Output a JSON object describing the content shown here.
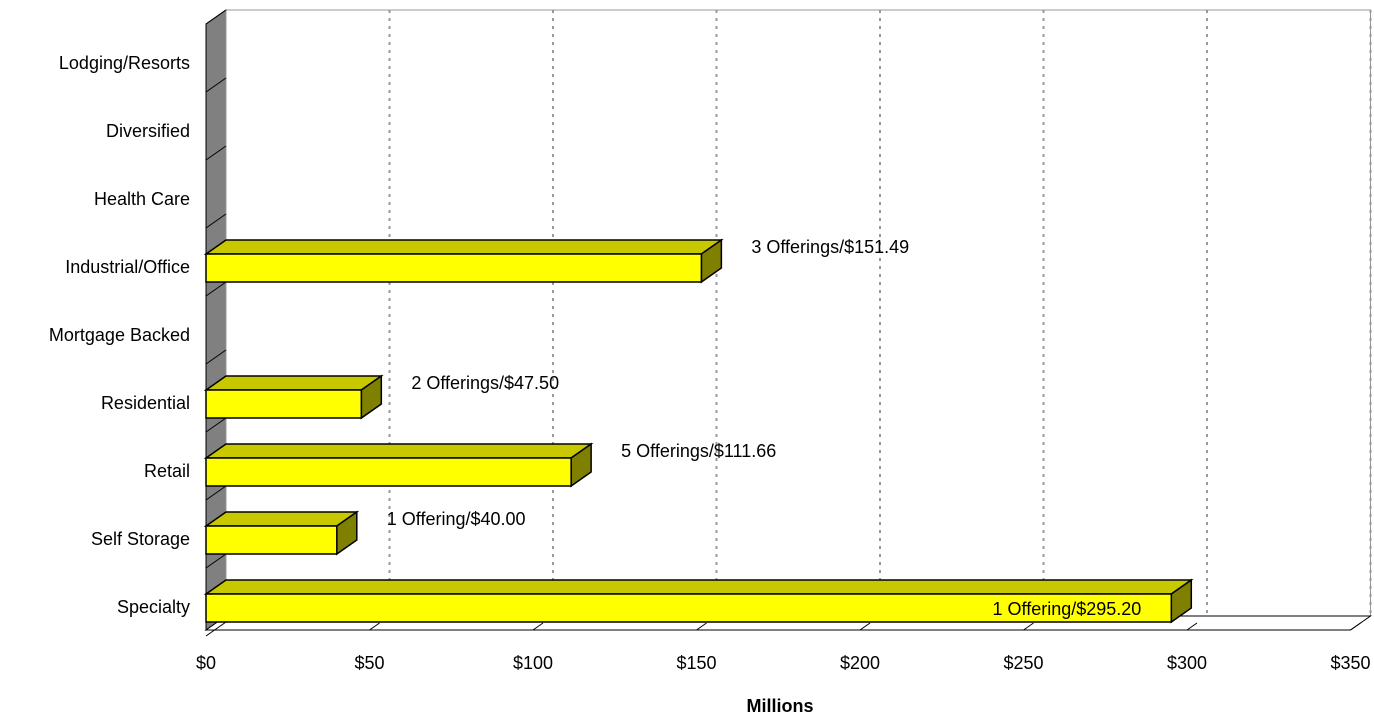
{
  "chart_data": {
    "type": "bar",
    "orientation": "horizontal",
    "three_d": true,
    "categories": [
      "Lodging/Resorts",
      "Diversified",
      "Health Care",
      "Industrial/Office",
      "Mortgage Backed",
      "Residential",
      "Retail",
      "Self Storage",
      "Specialty"
    ],
    "values": [
      0,
      0,
      0,
      151.49,
      0,
      47.5,
      111.66,
      40.0,
      295.2
    ],
    "data_labels": [
      "",
      "",
      "",
      "3 Offerings/$151.49",
      "",
      "2 Offerings/$47.50",
      "5 Offerings/$111.66",
      "1 Offering/$40.00",
      "1 Offering/$295.20"
    ],
    "xlabel": "Millions",
    "xlim": [
      0,
      350
    ],
    "x_ticks": [
      0,
      50,
      100,
      150,
      200,
      250,
      300,
      350
    ],
    "x_tick_labels": [
      "$0",
      "$50",
      "$100",
      "$150",
      "$200",
      "$250",
      "$300",
      "$350"
    ],
    "grid": "vertical-dotted",
    "legend": "none",
    "colors": {
      "bar_front": "#ffff00",
      "bar_top": "#c8c800",
      "bar_side": "#808000",
      "wall": "#808080",
      "grid": "#999999"
    }
  }
}
